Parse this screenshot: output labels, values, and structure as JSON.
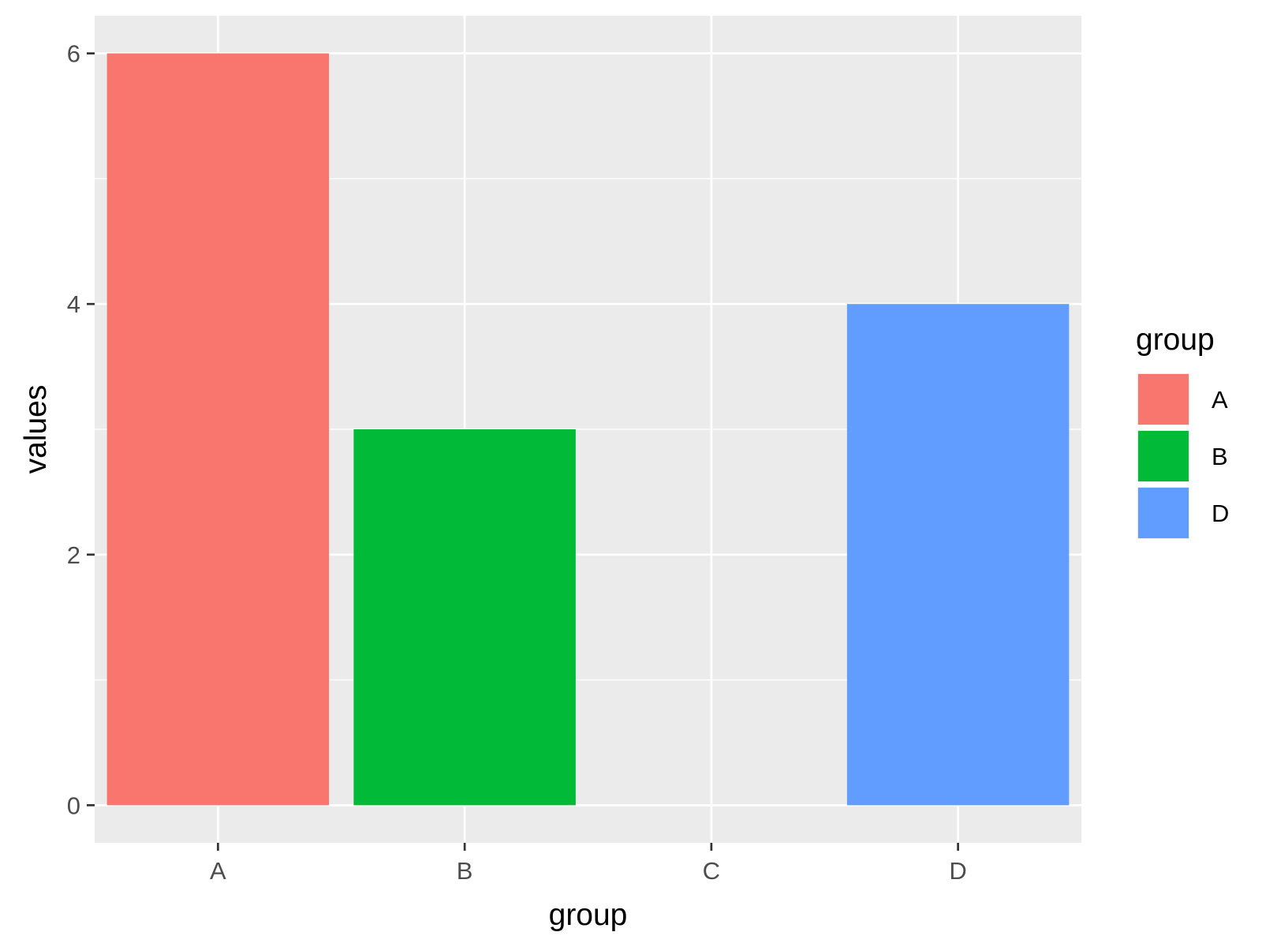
{
  "chart_data": {
    "type": "bar",
    "title": "",
    "xlabel": "group",
    "ylabel": "values",
    "categories": [
      "A",
      "B",
      "C",
      "D"
    ],
    "values": [
      6,
      3,
      0,
      4
    ],
    "ylim": [
      -0.3,
      6.3
    ],
    "yticks": [
      0,
      2,
      4,
      6
    ],
    "grid": true,
    "bar_colors": {
      "A": "#F8766D",
      "B": "#00BA38",
      "D": "#619CFF"
    },
    "legend": {
      "title": "group",
      "placement": "right",
      "entries": [
        {
          "label": "A",
          "color": "#F8766D"
        },
        {
          "label": "B",
          "color": "#00BA38"
        },
        {
          "label": "D",
          "color": "#619CFF"
        }
      ]
    },
    "panel_background": "#EBEBEB"
  }
}
